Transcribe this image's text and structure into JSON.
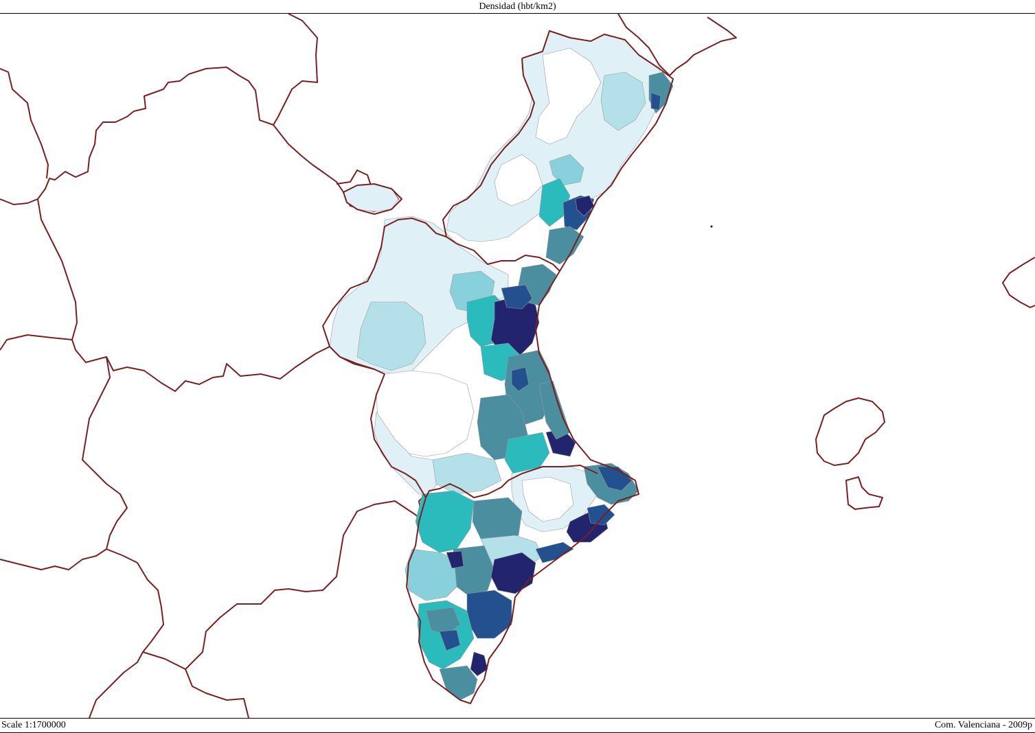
{
  "map": {
    "title": "Densidad (hbt/km2)",
    "scale": "Scale 1:1700000",
    "source": "Com. Valenciana - 2009p"
  },
  "colors": {
    "border": "#7a1f1f",
    "municipal_line": "#8c8c8c",
    "classes": [
      "#ffffff",
      "#dff1f6",
      "#b4e0e9",
      "#88d1dc",
      "#2bbbbd",
      "#4a8ea0",
      "#23508e",
      "#22246e"
    ]
  }
}
